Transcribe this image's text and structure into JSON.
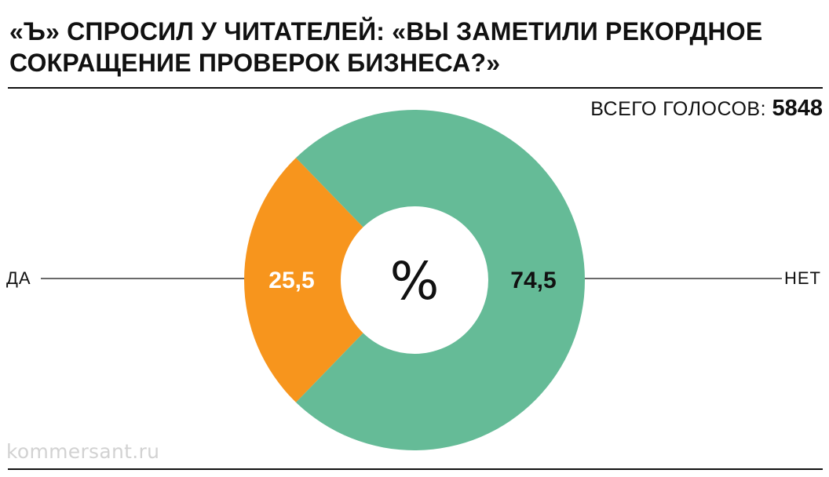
{
  "header": {
    "title_line1": "«Ъ» СПРОСИЛ У ЧИТАТЕЛЕЙ: «ВЫ ЗАМЕТИЛИ РЕКОРДНОЕ",
    "title_line2": "СОКРАЩЕНИЕ ПРОВЕРОК БИЗНЕСА?»"
  },
  "total": {
    "label": "ВСЕГО ГОЛОСОВ: ",
    "value": "5848"
  },
  "center_label": "%",
  "watermark": "kommersant.ru",
  "colors": {
    "yes": "#F7951D",
    "no": "#65BB97",
    "text": "#111111"
  },
  "chart_data": {
    "type": "pie",
    "subtype": "donut",
    "title": "«Ъ» СПРОСИЛ У ЧИТАТЕЛЕЙ: «ВЫ ЗАМЕТИЛИ РЕКОРДНОЕ СОКРАЩЕНИЕ ПРОВЕРОК БИЗНЕСА?»",
    "unit": "%",
    "total_votes": 5848,
    "slices": [
      {
        "label": "ДА",
        "value": 25.5,
        "value_label": "25,5",
        "color": "#F7951D",
        "value_label_color": "#ffffff"
      },
      {
        "label": "НЕТ",
        "value": 74.5,
        "value_label": "74,5",
        "color": "#65BB97",
        "value_label_color": "#111111"
      }
    ]
  }
}
